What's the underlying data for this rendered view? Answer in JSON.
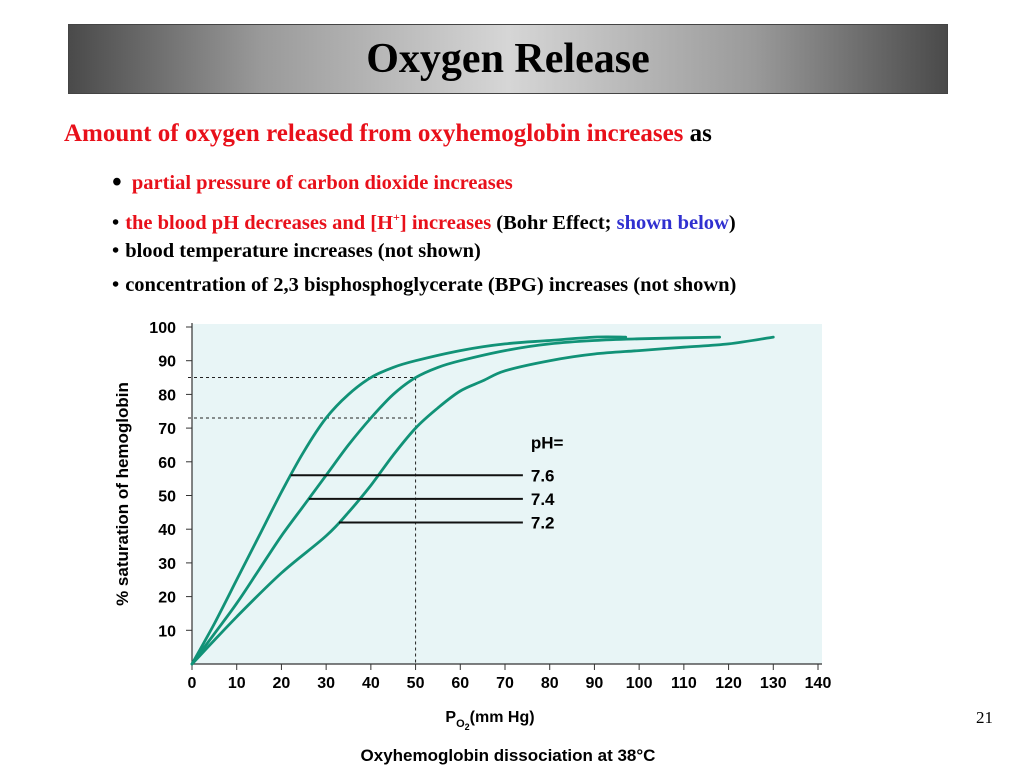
{
  "slide": {
    "title": "Oxygen Release",
    "intro_red": "Amount of oxygen released from oxyhemoglobin increases",
    "intro_black": " as",
    "bullets": [
      {
        "red": "partial pressure of carbon dioxide increases"
      },
      {
        "red_pre": "the blood pH decreases and [H",
        "sup": "+",
        "red_post": "] increases",
        "black1": " (Bohr Effect; ",
        "blue": "shown below",
        "black2": ")"
      },
      {
        "black": "blood temperature increases (not shown)"
      },
      {
        "black": "concentration of 2,3 bisphosphoglycerate (BPG) increases (not shown)"
      }
    ],
    "slide_number": "21"
  },
  "colors": {
    "curve": "#119277",
    "plot_bg": "#e8f5f6",
    "red": "#e8101a",
    "blue": "#3030d0"
  },
  "chart_data": {
    "type": "line",
    "title": "",
    "caption": "Oxyhemoglobin dissociation at 38°C",
    "xlabel_main": "P",
    "xlabel_sub": "O",
    "xlabel_subsub": "2",
    "xlabel_unit": "(mm Hg)",
    "ylabel": "% saturation of hemoglobin",
    "xlim": [
      0,
      140
    ],
    "ylim": [
      0,
      100
    ],
    "xticks": [
      0,
      10,
      20,
      30,
      40,
      50,
      60,
      70,
      80,
      90,
      100,
      110,
      120,
      130,
      140
    ],
    "yticks": [
      10,
      20,
      30,
      40,
      50,
      60,
      70,
      80,
      90,
      100
    ],
    "legend_title": "pH=",
    "series": [
      {
        "name": "7.6",
        "label_y": 56,
        "points": [
          [
            0,
            0
          ],
          [
            5,
            12
          ],
          [
            10,
            25
          ],
          [
            15,
            38
          ],
          [
            20,
            51
          ],
          [
            25,
            63
          ],
          [
            30,
            73
          ],
          [
            35,
            80
          ],
          [
            40,
            85
          ],
          [
            45,
            88
          ],
          [
            50,
            90
          ],
          [
            60,
            93
          ],
          [
            70,
            95
          ],
          [
            80,
            96
          ],
          [
            90,
            97
          ],
          [
            97,
            97
          ]
        ]
      },
      {
        "name": "7.4",
        "label_y": 49,
        "points": [
          [
            0,
            0
          ],
          [
            5,
            9
          ],
          [
            10,
            18
          ],
          [
            15,
            28
          ],
          [
            20,
            38
          ],
          [
            25,
            47
          ],
          [
            30,
            56
          ],
          [
            35,
            65
          ],
          [
            40,
            73
          ],
          [
            45,
            80
          ],
          [
            50,
            85
          ],
          [
            55,
            88
          ],
          [
            60,
            90
          ],
          [
            70,
            93
          ],
          [
            80,
            95
          ],
          [
            90,
            96
          ],
          [
            100,
            96.5
          ],
          [
            118,
            97
          ]
        ]
      },
      {
        "name": "7.2",
        "label_y": 42,
        "points": [
          [
            0,
            0
          ],
          [
            10,
            14
          ],
          [
            20,
            27
          ],
          [
            30,
            38
          ],
          [
            35,
            45
          ],
          [
            40,
            53
          ],
          [
            45,
            62
          ],
          [
            50,
            70
          ],
          [
            55,
            76
          ],
          [
            60,
            81
          ],
          [
            65,
            84
          ],
          [
            70,
            87
          ],
          [
            80,
            90
          ],
          [
            90,
            92
          ],
          [
            100,
            93
          ],
          [
            110,
            94
          ],
          [
            120,
            95
          ],
          [
            130,
            97
          ]
        ]
      }
    ],
    "reference_lines": {
      "x": 50,
      "y_values": [
        85,
        73
      ]
    }
  }
}
